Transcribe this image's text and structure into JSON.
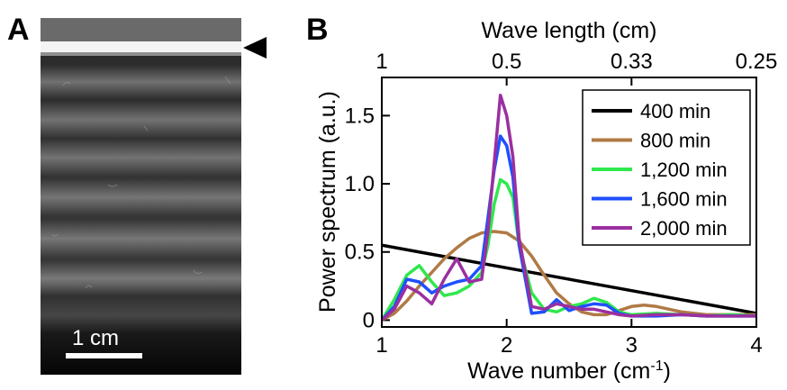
{
  "panel_a": {
    "letter": "A",
    "scale_bar_label": "1 cm",
    "marker_icon": "triangle-left-arrowhead-icon"
  },
  "panel_b": {
    "letter": "B"
  },
  "chart_data": {
    "type": "line",
    "title": "",
    "xlabel": "Wave number (cm",
    "xlabel_superscript": "-1",
    "xlabel_suffix": ")",
    "ylabel": "Power spectrum (a.u.)",
    "top_xlabel": "Wave length (cm)",
    "xlim": [
      1,
      4
    ],
    "ylim": [
      -0.05,
      1.78
    ],
    "x_ticks": [
      1,
      2,
      3,
      4
    ],
    "x_tick_labels": [
      "1",
      "2",
      "3",
      "4"
    ],
    "y_ticks": [
      0,
      0.5,
      1.0,
      1.5
    ],
    "y_tick_labels": [
      "0",
      "0.5",
      "1.0",
      "1.5"
    ],
    "top_ticks": [
      1,
      2,
      3,
      4
    ],
    "top_tick_labels": [
      "1",
      "0.5",
      "0.33",
      "0.25"
    ],
    "legend_position": "top-right",
    "grid": false,
    "series": [
      {
        "name": "400 min",
        "color": "#000000",
        "x": [
          1.0,
          4.0
        ],
        "y": [
          0.55,
          0.05
        ]
      },
      {
        "name": "800 min",
        "color": "#b07a45",
        "x": [
          1.0,
          1.1,
          1.2,
          1.3,
          1.4,
          1.5,
          1.6,
          1.7,
          1.8,
          1.9,
          2.0,
          2.1,
          2.2,
          2.3,
          2.4,
          2.5,
          2.6,
          2.7,
          2.8,
          2.9,
          3.0,
          3.1,
          3.2,
          3.3,
          3.4,
          3.5,
          3.6,
          3.7,
          3.8,
          3.9,
          4.0
        ],
        "y": [
          0.0,
          0.05,
          0.14,
          0.25,
          0.35,
          0.45,
          0.53,
          0.6,
          0.64,
          0.65,
          0.64,
          0.58,
          0.47,
          0.33,
          0.2,
          0.12,
          0.06,
          0.04,
          0.04,
          0.07,
          0.1,
          0.11,
          0.1,
          0.08,
          0.06,
          0.05,
          0.04,
          0.04,
          0.04,
          0.04,
          0.04
        ]
      },
      {
        "name": "1,200 min",
        "color": "#2ee84c",
        "x": [
          1.0,
          1.1,
          1.2,
          1.3,
          1.4,
          1.5,
          1.6,
          1.7,
          1.8,
          1.85,
          1.9,
          1.95,
          2.0,
          2.05,
          2.1,
          2.2,
          2.3,
          2.4,
          2.5,
          2.6,
          2.7,
          2.8,
          2.9,
          3.0,
          3.2,
          3.4,
          3.6,
          3.8,
          4.0
        ],
        "y": [
          0.0,
          0.15,
          0.33,
          0.4,
          0.28,
          0.18,
          0.2,
          0.25,
          0.35,
          0.55,
          0.85,
          1.03,
          1.0,
          0.9,
          0.55,
          0.2,
          0.08,
          0.06,
          0.1,
          0.12,
          0.16,
          0.13,
          0.06,
          0.04,
          0.05,
          0.04,
          0.03,
          0.04,
          0.03
        ]
      },
      {
        "name": "1,600 min",
        "color": "#1f4fff",
        "x": [
          1.0,
          1.1,
          1.2,
          1.3,
          1.4,
          1.5,
          1.6,
          1.7,
          1.8,
          1.85,
          1.9,
          1.95,
          2.0,
          2.05,
          2.1,
          2.2,
          2.3,
          2.4,
          2.5,
          2.6,
          2.7,
          2.8,
          2.9,
          3.0,
          3.2,
          3.4,
          3.6,
          3.8,
          4.0
        ],
        "y": [
          0.0,
          0.1,
          0.3,
          0.28,
          0.2,
          0.25,
          0.28,
          0.3,
          0.4,
          0.75,
          1.1,
          1.35,
          1.28,
          1.05,
          0.55,
          0.05,
          0.06,
          0.15,
          0.07,
          0.1,
          0.12,
          0.11,
          0.05,
          0.03,
          0.03,
          0.04,
          0.03,
          0.03,
          0.03
        ]
      },
      {
        "name": "2,000 min",
        "color": "#9b2fa0",
        "x": [
          1.0,
          1.1,
          1.2,
          1.3,
          1.4,
          1.5,
          1.6,
          1.7,
          1.8,
          1.85,
          1.9,
          1.95,
          2.0,
          2.05,
          2.1,
          2.2,
          2.3,
          2.4,
          2.5,
          2.6,
          2.7,
          2.8,
          2.9,
          3.0,
          3.2,
          3.4,
          3.6,
          3.8,
          4.0
        ],
        "y": [
          0.0,
          0.08,
          0.25,
          0.2,
          0.12,
          0.3,
          0.45,
          0.28,
          0.3,
          0.65,
          1.15,
          1.65,
          1.5,
          1.2,
          0.6,
          0.1,
          0.08,
          0.12,
          0.1,
          0.08,
          0.08,
          0.06,
          0.04,
          0.03,
          0.04,
          0.04,
          0.03,
          0.03,
          0.03
        ]
      }
    ]
  }
}
